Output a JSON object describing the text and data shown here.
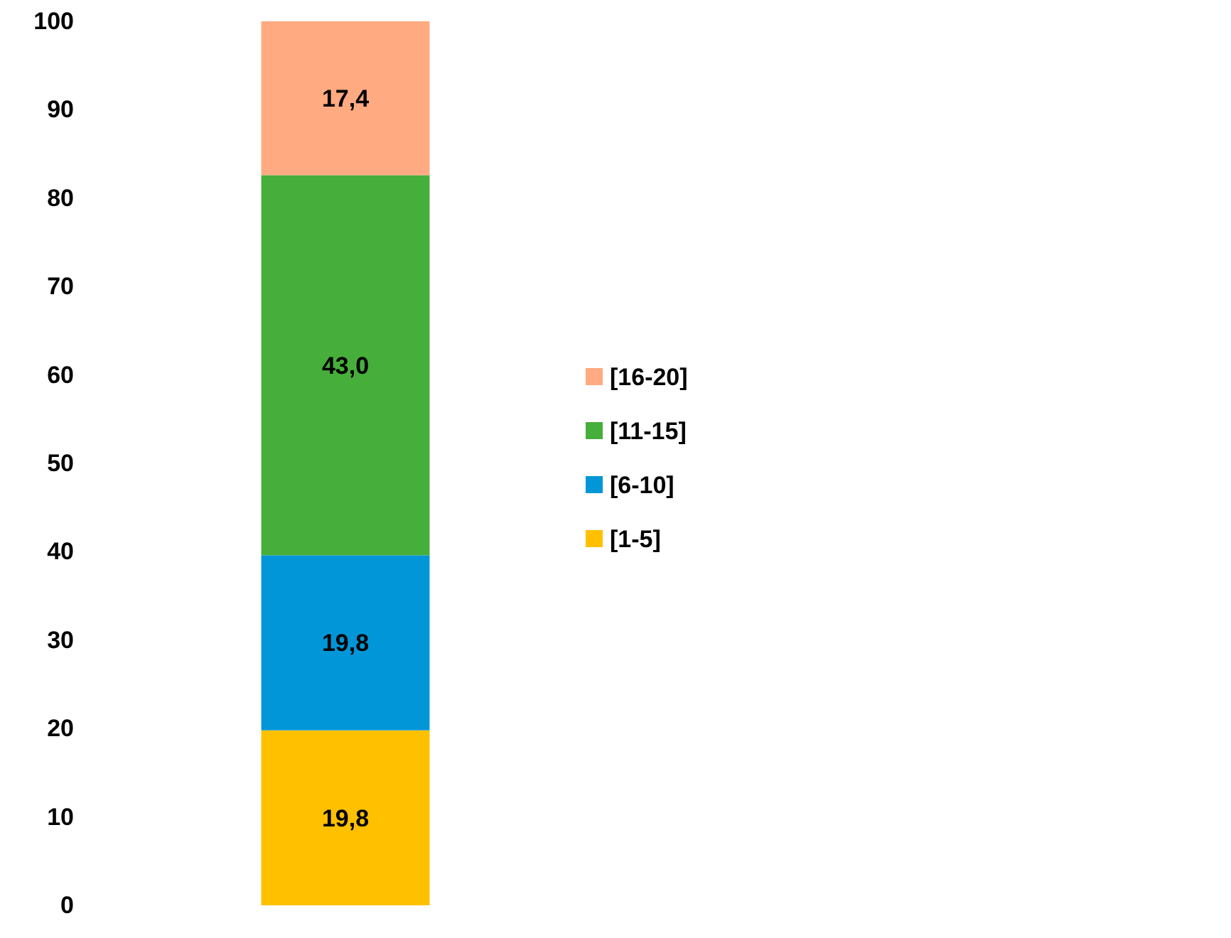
{
  "chart_data": {
    "type": "bar",
    "stacked": true,
    "categories": [
      null
    ],
    "series": [
      {
        "name": "[1-5]",
        "color": "#ffc000",
        "values": [
          19.8
        ],
        "value_labels": [
          "19,8"
        ]
      },
      {
        "name": "[6-10]",
        "color": "#0096d8",
        "values": [
          19.8
        ],
        "value_labels": [
          "19,8"
        ]
      },
      {
        "name": "[11-15]",
        "color": "#46ae3a",
        "values": [
          43.0
        ],
        "value_labels": [
          "43,0"
        ]
      },
      {
        "name": "[16-20]",
        "color": "#ffaa80",
        "values": [
          17.4
        ],
        "value_labels": [
          "17,4"
        ]
      }
    ],
    "ylim": [
      0,
      100
    ],
    "yticks": [
      0,
      10,
      20,
      30,
      40,
      50,
      60,
      70,
      80,
      90,
      100
    ],
    "grid": false,
    "legend": "right"
  }
}
